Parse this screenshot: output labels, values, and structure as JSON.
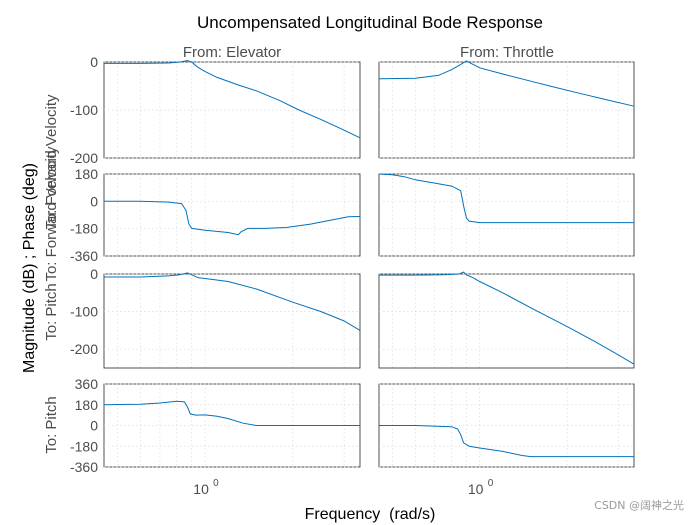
{
  "chart_data": {
    "type": "line",
    "title": "Uncompensated Longitudinal Bode Response",
    "xlabel": "Frequency  (rad/s)",
    "ylabel": "Magnitude (dB) ; Phase (deg)",
    "xscale": "log",
    "xlim": [
      0.45,
      3.4
    ],
    "x_tick_label": "10",
    "x_tick_exponent": "0",
    "columns": [
      "From: Elevator",
      "From: Throttle"
    ],
    "rows": [
      {
        "output": "To: Forward Velocity",
        "kind": "magnitude",
        "ylim": [
          -200,
          0
        ],
        "yticks": [
          0,
          -100,
          -200
        ],
        "ytick_labels": [
          "0",
          "-100",
          "-200"
        ]
      },
      {
        "output": "To: Forward Velocity",
        "kind": "phase",
        "ylim": [
          -360,
          180
        ],
        "yticks": [
          180,
          0,
          -180,
          -360
        ],
        "ytick_labels": [
          "180",
          "0",
          "-180",
          "-360"
        ]
      },
      {
        "output": "To: Pitch",
        "kind": "magnitude",
        "ylim": [
          -250,
          0
        ],
        "yticks": [
          0,
          -100,
          -200
        ],
        "ytick_labels": [
          "0",
          "-100",
          "-200"
        ]
      },
      {
        "output": "To: Pitch",
        "kind": "phase",
        "ylim": [
          -360,
          360
        ],
        "yticks": [
          360,
          180,
          0,
          -180,
          -360
        ],
        "ytick_labels": [
          "360",
          "180",
          "0",
          "-180",
          "-360"
        ]
      }
    ],
    "row_labels": [
      "To: Forward Velocity",
      "To: Pitch"
    ],
    "series": [
      {
        "name": "Elevator to Forward Velocity magnitude",
        "row": 0,
        "col": 0,
        "x": [
          0.45,
          0.6,
          0.75,
          0.82,
          0.87,
          0.9,
          0.94,
          1.0,
          1.1,
          1.3,
          1.5,
          1.8,
          2.1,
          2.5,
          2.9,
          3.4
        ],
        "y": [
          -3,
          -3,
          -2,
          0,
          3,
          0,
          -10,
          -20,
          -32,
          -48,
          -60,
          -80,
          -100,
          -120,
          -138,
          -158
        ]
      },
      {
        "name": "Elevator to Forward Velocity phase",
        "row": 1,
        "col": 0,
        "x": [
          0.45,
          0.6,
          0.75,
          0.83,
          0.86,
          0.88,
          0.9,
          1.0,
          1.2,
          1.3,
          1.33,
          1.4,
          1.6,
          1.9,
          2.3,
          2.8,
          3.1,
          3.4
        ],
        "y": [
          0,
          0,
          -5,
          -15,
          -60,
          -150,
          -178,
          -190,
          -205,
          -220,
          -200,
          -178,
          -178,
          -172,
          -150,
          -118,
          -102,
          -100
        ]
      },
      {
        "name": "Throttle to Forward Velocity magnitude",
        "row": 0,
        "col": 1,
        "x": [
          0.45,
          0.6,
          0.72,
          0.8,
          0.86,
          0.9,
          0.95,
          1.0,
          1.2,
          1.5,
          1.8,
          2.2,
          2.7,
          3.4
        ],
        "y": [
          -35,
          -34,
          -28,
          -16,
          -5,
          2,
          -5,
          -12,
          -25,
          -40,
          -52,
          -65,
          -78,
          -92
        ]
      },
      {
        "name": "Throttle to Forward Velocity phase",
        "row": 1,
        "col": 1,
        "x": [
          0.45,
          0.5,
          0.55,
          0.6,
          0.7,
          0.8,
          0.86,
          0.88,
          0.9,
          0.92,
          1.0,
          1.5,
          2.0,
          3.4
        ],
        "y": [
          180,
          175,
          162,
          142,
          120,
          100,
          70,
          -30,
          -110,
          -130,
          -140,
          -140,
          -140,
          -140
        ]
      },
      {
        "name": "Elevator to Pitch magnitude",
        "row": 2,
        "col": 0,
        "x": [
          0.45,
          0.6,
          0.75,
          0.82,
          0.87,
          0.9,
          0.95,
          1.0,
          1.2,
          1.5,
          2.0,
          2.5,
          3.0,
          3.4
        ],
        "y": [
          -8,
          -8,
          -5,
          -2,
          3,
          -2,
          -10,
          -12,
          -20,
          -40,
          -75,
          -100,
          -125,
          -150
        ]
      },
      {
        "name": "Elevator to Pitch phase",
        "row": 3,
        "col": 0,
        "x": [
          0.45,
          0.6,
          0.7,
          0.8,
          0.85,
          0.87,
          0.89,
          0.93,
          1.0,
          1.1,
          1.2,
          1.35,
          1.5,
          2.0,
          3.4
        ],
        "y": [
          180,
          185,
          195,
          210,
          205,
          160,
          100,
          90,
          92,
          80,
          60,
          20,
          0,
          0,
          0
        ]
      },
      {
        "name": "Throttle to Pitch magnitude",
        "row": 2,
        "col": 1,
        "x": [
          0.45,
          0.6,
          0.75,
          0.85,
          0.88,
          0.9,
          0.95,
          1.0,
          1.2,
          1.5,
          2.0,
          2.5,
          3.0,
          3.4
        ],
        "y": [
          -3,
          -3,
          -2,
          0,
          5,
          -2,
          -10,
          -20,
          -50,
          -90,
          -140,
          -180,
          -215,
          -240
        ]
      },
      {
        "name": "Throttle to Pitch phase",
        "row": 3,
        "col": 1,
        "x": [
          0.45,
          0.6,
          0.8,
          0.84,
          0.86,
          0.88,
          0.92,
          1.0,
          1.2,
          1.4,
          1.5,
          2.0,
          3.4
        ],
        "y": [
          0,
          0,
          -10,
          -30,
          -80,
          -150,
          -180,
          -195,
          -225,
          -260,
          -270,
          -270,
          -270
        ]
      }
    ],
    "grid": true
  },
  "footer": {
    "watermark": "CSDN @阔神之光"
  }
}
